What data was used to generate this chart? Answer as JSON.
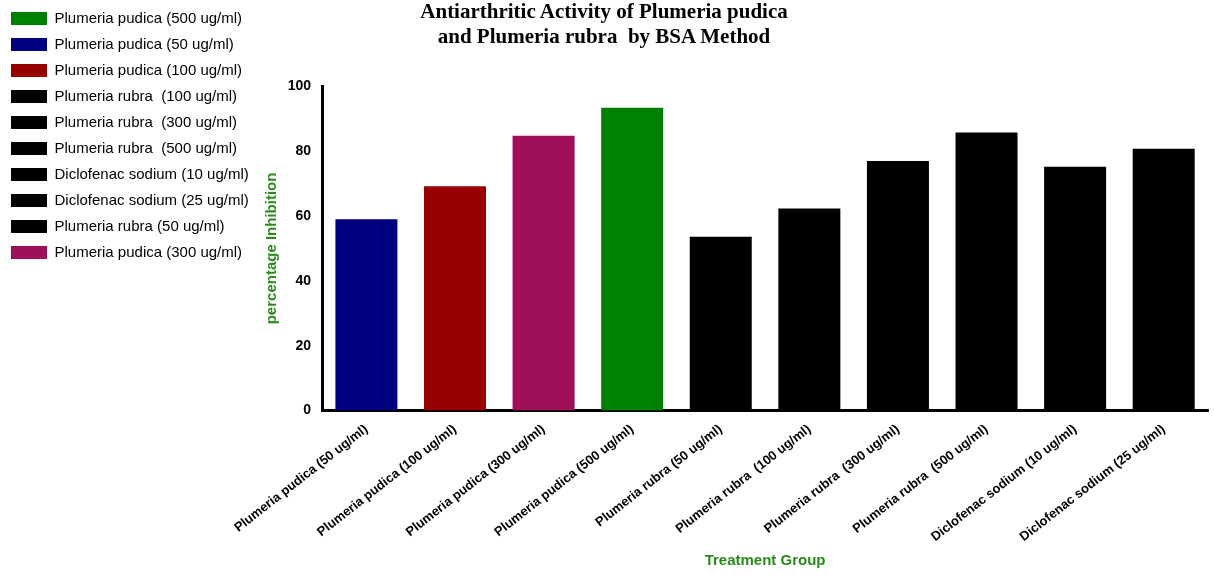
{
  "chart_data": {
    "type": "bar",
    "title": [
      "Antiarthritic Activity of Plumeria pudica",
      "and Plumeria rubra  by BSA Method"
    ],
    "xlabel": "Treatment Group",
    "ylabel": "percentage Inhibition",
    "categories": [
      "Plumeria pudica (50 ug/ml)",
      "Plumeria pudica (100 ug/ml)",
      "Plumeria pudica (300 ug/ml)",
      "Plumeria pudica (500 ug/ml)",
      "Plumeria rubra (50 ug/ml)",
      "Plumeria rubra  (100 ug/ml)",
      "Plumeria rubra  (300 ug/ml)",
      "Plumeria rubra  (500 ug/ml)",
      "Diclofenac sodium (10 ug/ml)",
      "Diclofenac sodium (25 ug/ml)"
    ],
    "series": [
      {
        "name": "Plumeria pudica (500 ug/ml)",
        "color": "#008000",
        "values": [
          null,
          null,
          null,
          93.4,
          null,
          null,
          null,
          null,
          null,
          null
        ]
      },
      {
        "name": "Plumeria pudica (50 ug/ml)",
        "color": "#000080",
        "values": [
          59.0,
          null,
          null,
          null,
          null,
          null,
          null,
          null,
          null,
          null
        ]
      },
      {
        "name": "Plumeria pudica (100 ug/ml)",
        "color": "#990000",
        "values": [
          null,
          69.2,
          null,
          null,
          null,
          null,
          null,
          null,
          null,
          null
        ]
      },
      {
        "name": "Plumeria rubra  (100 ug/ml)",
        "color": "#000000",
        "values": [
          null,
          null,
          null,
          null,
          null,
          62.3,
          null,
          null,
          null,
          null
        ]
      },
      {
        "name": "Plumeria rubra  (300 ug/ml)",
        "color": "#000000",
        "values": [
          null,
          null,
          null,
          null,
          null,
          null,
          77.0,
          null,
          null,
          null
        ]
      },
      {
        "name": "Plumeria rubra  (500 ug/ml)",
        "color": "#000000",
        "values": [
          null,
          null,
          null,
          null,
          null,
          null,
          null,
          85.8,
          null,
          null
        ]
      },
      {
        "name": "Diclofenac sodium (10 ug/ml)",
        "color": "#000000",
        "values": [
          null,
          null,
          null,
          null,
          null,
          null,
          null,
          null,
          75.2,
          null
        ]
      },
      {
        "name": "Diclofenac sodium (25 ug/ml)",
        "color": "#000000",
        "values": [
          null,
          null,
          null,
          null,
          null,
          null,
          null,
          null,
          null,
          80.8
        ]
      },
      {
        "name": "Plumeria rubra (50 ug/ml)",
        "color": "#000000",
        "values": [
          null,
          null,
          null,
          null,
          53.6,
          null,
          null,
          null,
          null,
          null
        ]
      },
      {
        "name": "Plumeria pudica (300 ug/ml)",
        "color": "#a0105a",
        "values": [
          null,
          null,
          84.8,
          null,
          null,
          null,
          null,
          null,
          null,
          null
        ]
      }
    ],
    "ylim": [
      0,
      100
    ],
    "yticks": [
      0,
      20,
      40,
      60,
      80,
      100
    ],
    "grid": false,
    "legend": "left"
  }
}
